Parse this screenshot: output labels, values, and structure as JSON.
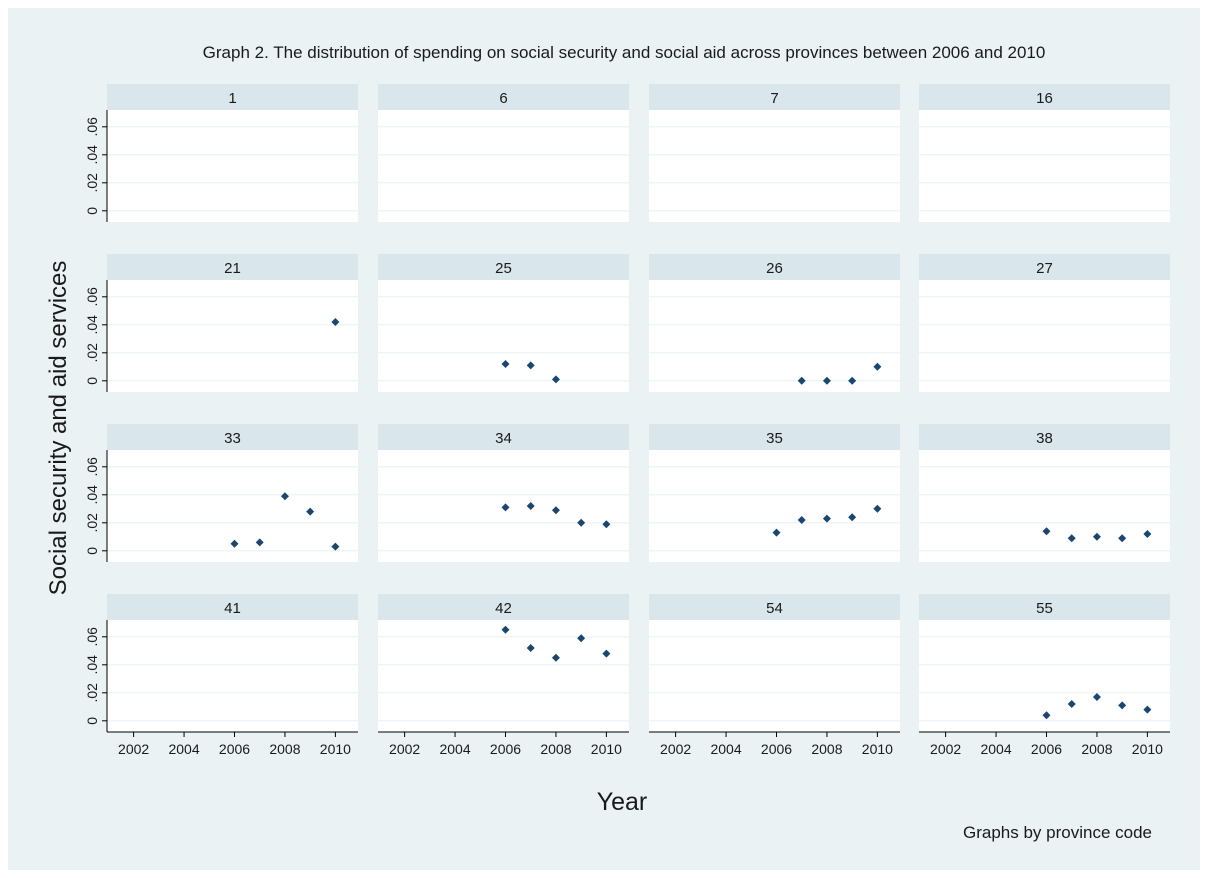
{
  "chart_data": {
    "type": "scatter",
    "title": "Graph 2. The distribution of spending on social security and social aid across provinces between 2006 and 2010",
    "xlabel": "Year",
    "ylabel": "Social security and aid services",
    "note": "Graphs by province code",
    "xlim": [
      2001.5,
      2010.5
    ],
    "ylim": [
      -0.008,
      0.072
    ],
    "x_ticks": [
      2002,
      2004,
      2006,
      2008,
      2010
    ],
    "x_tick_labels": [
      "2002",
      "2004",
      "2006",
      "2008",
      "2010"
    ],
    "y_ticks": [
      0,
      0.02,
      0.04,
      0.06
    ],
    "y_tick_labels": [
      "0",
      ".02",
      ".04",
      ".06"
    ],
    "grid": true,
    "marker": "diamond",
    "colors": {
      "outer_background": "#eaf2f3",
      "panel_background": "#ffffff",
      "panel_header": "#d9e6eb",
      "gridline": "#eaf2f3",
      "marker": "#1a476f",
      "axis": "#000000"
    },
    "panels": [
      {
        "label": "1",
        "points": []
      },
      {
        "label": "6",
        "points": []
      },
      {
        "label": "7",
        "points": []
      },
      {
        "label": "16",
        "points": []
      },
      {
        "label": "21",
        "points": [
          [
            2010,
            0.042
          ]
        ]
      },
      {
        "label": "25",
        "points": [
          [
            2006,
            0.012
          ],
          [
            2007,
            0.011
          ],
          [
            2008,
            0.001
          ]
        ]
      },
      {
        "label": "26",
        "points": [
          [
            2007,
            0.0
          ],
          [
            2008,
            0.0
          ],
          [
            2009,
            0.0
          ],
          [
            2010,
            0.01
          ]
        ]
      },
      {
        "label": "27",
        "points": []
      },
      {
        "label": "33",
        "points": [
          [
            2006,
            0.005
          ],
          [
            2007,
            0.006
          ],
          [
            2008,
            0.039
          ],
          [
            2009,
            0.028
          ],
          [
            2010,
            0.003
          ]
        ]
      },
      {
        "label": "34",
        "points": [
          [
            2006,
            0.031
          ],
          [
            2007,
            0.032
          ],
          [
            2008,
            0.029
          ],
          [
            2009,
            0.02
          ],
          [
            2010,
            0.019
          ]
        ]
      },
      {
        "label": "35",
        "points": [
          [
            2006,
            0.013
          ],
          [
            2007,
            0.022
          ],
          [
            2008,
            0.023
          ],
          [
            2009,
            0.024
          ],
          [
            2010,
            0.03
          ]
        ]
      },
      {
        "label": "38",
        "points": [
          [
            2006,
            0.014
          ],
          [
            2007,
            0.009
          ],
          [
            2008,
            0.01
          ],
          [
            2009,
            0.009
          ],
          [
            2010,
            0.012
          ]
        ]
      },
      {
        "label": "41",
        "points": []
      },
      {
        "label": "42",
        "points": [
          [
            2006,
            0.065
          ],
          [
            2007,
            0.052
          ],
          [
            2008,
            0.045
          ],
          [
            2009,
            0.059
          ],
          [
            2010,
            0.048
          ]
        ]
      },
      {
        "label": "54",
        "points": []
      },
      {
        "label": "55",
        "points": [
          [
            2006,
            0.004
          ],
          [
            2007,
            0.012
          ],
          [
            2008,
            0.017
          ],
          [
            2009,
            0.011
          ],
          [
            2010,
            0.008
          ]
        ]
      }
    ]
  }
}
